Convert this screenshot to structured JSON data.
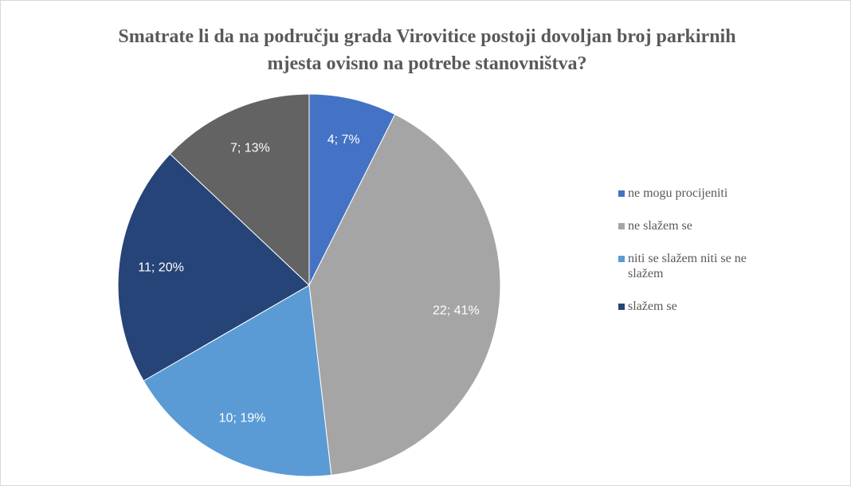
{
  "chart_data": {
    "type": "pie",
    "title": "Smatrate li da na području grada Virovitice postoji dovoljan broj parkirnih mjesta ovisno na potrebe stanovništva?",
    "categories": [
      "ne mogu procijeniti",
      "ne slažem se",
      "niti se slažem niti se ne slažem",
      "slažem se",
      null
    ],
    "values": [
      4,
      22,
      10,
      11,
      7
    ],
    "value_labels": [
      "4; 7%",
      "22; 41%",
      "10; 19%",
      "11; 20%",
      "7; 13%"
    ],
    "colors": [
      "#4472c4",
      "#a5a5a5",
      "#5b9bd5",
      "#264478",
      "#636363"
    ],
    "legend": "right"
  }
}
